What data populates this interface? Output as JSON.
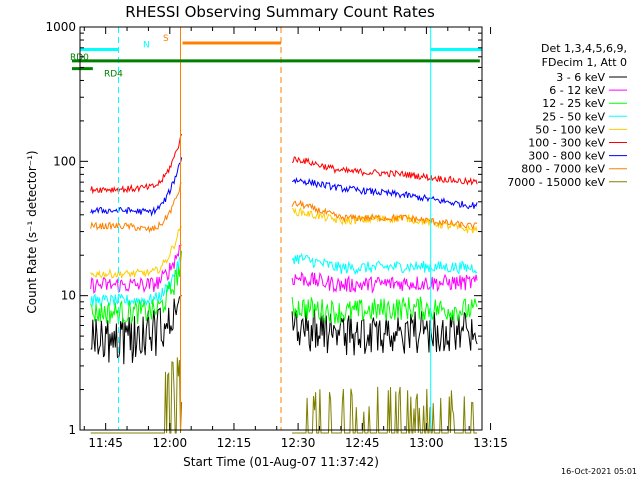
{
  "chart_data": {
    "type": "line",
    "title": "RHESSI Observing Summary Count Rates",
    "xlabel": "Start Time (01-Aug-07 11:37:42)",
    "ylabel": "Count Rate (s⁻¹ detector⁻¹)",
    "y_scale": "log",
    "ylim": [
      1,
      1000
    ],
    "xlim_minutes": [
      -21,
      73
    ],
    "x_tick_labels": [
      "11:45",
      "12:00",
      "12:15",
      "12:30",
      "12:45",
      "13:00",
      "13:15"
    ],
    "x_tick_minutes": [
      -15,
      0,
      15,
      30,
      45,
      60,
      75
    ],
    "y_tick_labels": [
      "1",
      "10",
      "100",
      "1000"
    ],
    "y_tick_values": [
      1,
      10,
      100,
      1000
    ],
    "legend_header": [
      "Det 1,3,4,5,6,9,",
      "FDecim 1, Att 0"
    ],
    "legend_position": "right",
    "series": [
      {
        "name": "3 - 6 keV",
        "color": "#000000",
        "level_minutes": [
          -14,
          -11,
          -6,
          7
        ],
        "pre": [
          4.6,
          5.2,
          10
        ],
        "mid_points": [
          [
            30.5,
            5.6
          ],
          [
            40,
            5.1
          ],
          [
            55,
            5.3
          ],
          [
            70,
            5.5
          ]
        ]
      },
      {
        "name": "6 - 12 keV",
        "color": "#ff00ff",
        "pre": [
          12,
          12,
          25
        ],
        "mid_points": [
          [
            30.5,
            13.5
          ],
          [
            40,
            12
          ],
          [
            55,
            12.4
          ],
          [
            70,
            12.5
          ]
        ]
      },
      {
        "name": "12 - 25 keV",
        "color": "#00ff00",
        "pre": [
          7.5,
          7.6,
          18
        ],
        "mid_points": [
          [
            30.5,
            8.2
          ],
          [
            40,
            7.5
          ],
          [
            55,
            8.1
          ],
          [
            70,
            7.8
          ]
        ]
      },
      {
        "name": "25 - 50 keV",
        "color": "#00ffff",
        "pre": [
          9.2,
          9.3,
          20
        ],
        "mid_points": [
          [
            30.5,
            19
          ],
          [
            40,
            16
          ],
          [
            55,
            16.5
          ],
          [
            70,
            16.2
          ]
        ]
      },
      {
        "name": "50 - 100 keV",
        "color": "#ffcc00",
        "pre": [
          14.5,
          14.8,
          35
        ],
        "mid_points": [
          [
            30.5,
            42
          ],
          [
            40,
            36
          ],
          [
            55,
            38
          ],
          [
            70,
            31
          ]
        ]
      },
      {
        "name": "100 - 300 keV",
        "color": "#ff0000",
        "pre": [
          62,
          64,
          160
        ],
        "mid_points": [
          [
            30.5,
            103
          ],
          [
            40,
            85
          ],
          [
            55,
            80
          ],
          [
            70,
            70
          ]
        ]
      },
      {
        "name": "300 - 800 keV",
        "color": "#0000ff",
        "pre": [
          43,
          42,
          110
        ],
        "mid_points": [
          [
            30.5,
            72
          ],
          [
            40,
            63
          ],
          [
            55,
            56
          ],
          [
            70,
            47
          ]
        ]
      },
      {
        "name": "800 - 7000 keV",
        "color": "#ff8000",
        "pre": [
          33,
          31,
          70
        ],
        "mid_points": [
          [
            30.5,
            48
          ],
          [
            40,
            38
          ],
          [
            55,
            38
          ],
          [
            70,
            33
          ]
        ]
      },
      {
        "name": "7000 - 15000 keV",
        "color": "#808000",
        "pre": [
          1.3,
          1.3,
          3
        ],
        "mid_points": [
          [
            30.5,
            1.3
          ],
          [
            40,
            1.2
          ],
          [
            55,
            1.2
          ],
          [
            70,
            1.3
          ]
        ]
      }
    ],
    "flags": [
      {
        "label": "RD0",
        "color": "#008000",
        "value": 560
      },
      {
        "label": "RD4",
        "color": "#008000",
        "value": 490
      },
      {
        "label": "N",
        "color": "#00ffff",
        "value": 680
      },
      {
        "label": "S",
        "color": "#ff8000",
        "value": 760
      }
    ],
    "night_intervals": [
      [
        -21,
        -12
      ],
      [
        61,
        73
      ]
    ],
    "saa_interval": [
      2.5,
      26
    ],
    "vertical_markers": [
      {
        "minute": -21,
        "color": "#00ffff",
        "style": "solid"
      },
      {
        "minute": -12,
        "color": "#00ffff",
        "style": "dashed"
      },
      {
        "minute": 2.5,
        "color": "#ff8000",
        "style": "solid"
      },
      {
        "minute": 26,
        "color": "#ff8000",
        "style": "dashed"
      },
      {
        "minute": 61,
        "color": "#00ffff",
        "style": "solid"
      },
      {
        "minute": 73,
        "color": "#00ffff",
        "style": "dashed"
      }
    ],
    "footer_date": "16-Oct-2021 05:01"
  }
}
